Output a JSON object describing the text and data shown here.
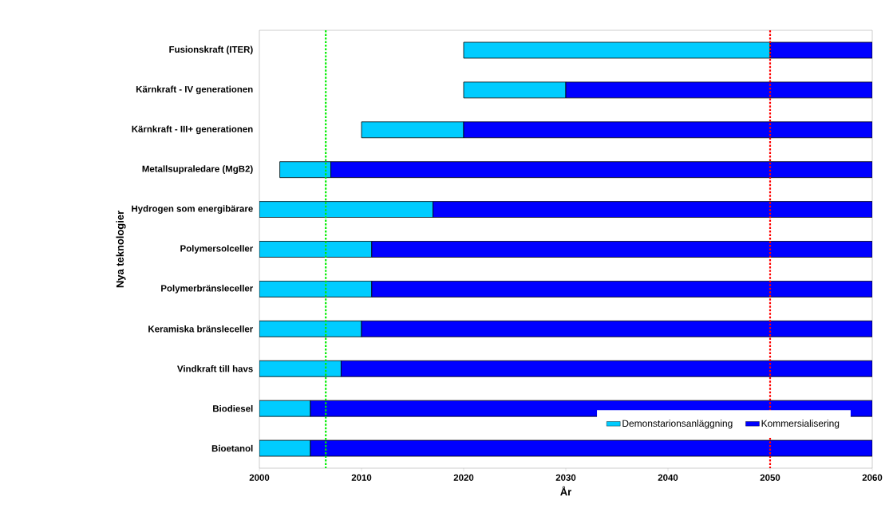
{
  "chart_data": {
    "type": "bar",
    "orientation": "horizontal",
    "xlabel": "År",
    "ylabel": "Nya teknologier",
    "categories": [
      "Fusionskraft (ITER)",
      "Kärnkraft - IV generationen",
      "Kärnkraft - III+ generationen",
      "Metallsupraledare (MgB2)",
      "Hydrogen som energibärare",
      "Polymersolceller",
      "Polymerbränsleceller",
      "Keramiska bränsleceller",
      "Vindkraft till havs",
      "Biodiesel",
      "Bioetanol"
    ],
    "series": [
      {
        "name": "Demonstarionsanläggning",
        "color": "#00ccff",
        "base": [
          2020,
          2020,
          2010,
          2002,
          2000,
          2000,
          2000,
          2000,
          2000,
          2000,
          2000
        ],
        "values": [
          30,
          10,
          10,
          5,
          17,
          11,
          11,
          10,
          8,
          5,
          5
        ]
      },
      {
        "name": "Kommersialisering",
        "color": "#0000ff",
        "base": [
          2050,
          2030,
          2020,
          2007,
          2017,
          2011,
          2011,
          2010,
          2008,
          2005,
          2005
        ],
        "values": [
          10,
          30,
          40,
          53,
          43,
          49,
          49,
          50,
          52,
          55,
          55
        ]
      }
    ],
    "xlim": [
      2000,
      2060
    ],
    "xticks": [
      2000,
      2010,
      2020,
      2030,
      2040,
      2050,
      2060
    ],
    "ref_lines": [
      {
        "axis": "x",
        "value": 2006.5,
        "color": "#00ee00",
        "line_style": "dotted"
      },
      {
        "axis": "x",
        "value": 2050,
        "color": "#ff0000",
        "line_style": "dotted"
      }
    ],
    "legend": "bottom right",
    "grid": false
  }
}
